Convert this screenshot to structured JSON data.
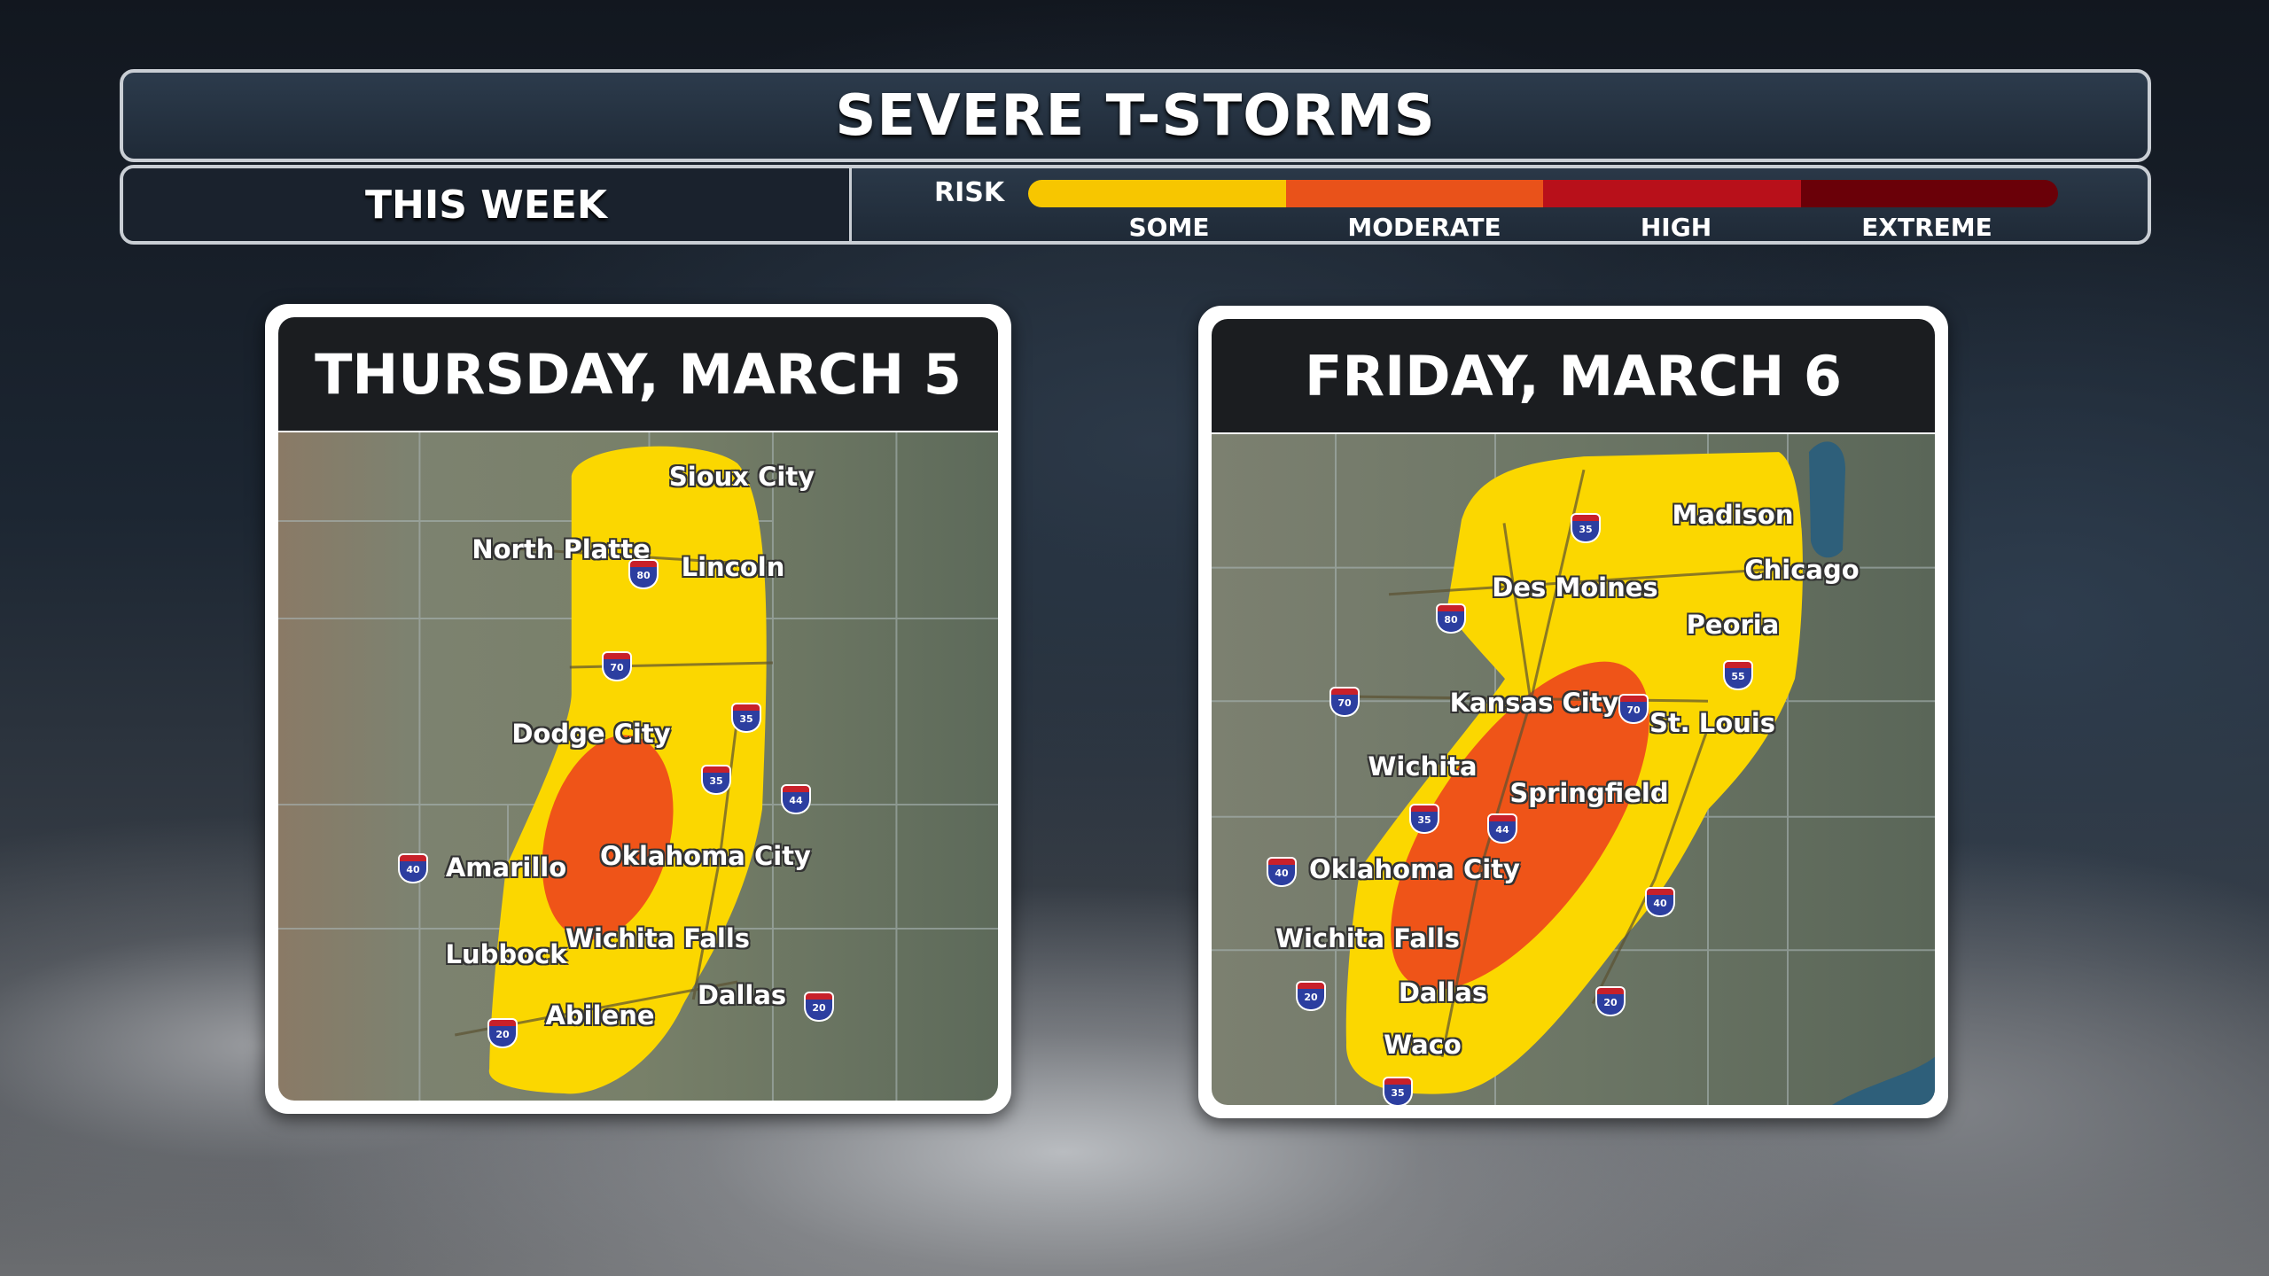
{
  "header": {
    "title": "SEVERE T-STORMS",
    "period": "THIS WEEK",
    "risk_label": "RISK",
    "risk_levels": [
      {
        "label": "SOME",
        "color": "#f7c600"
      },
      {
        "label": "MODERATE",
        "color": "#e9521a"
      },
      {
        "label": "HIGH",
        "color": "#b8101a"
      },
      {
        "label": "EXTREME",
        "color": "#6a0008"
      }
    ]
  },
  "panels": [
    {
      "title": "THURSDAY, MARCH 5",
      "cities": [
        "Sioux City",
        "North Platte",
        "Lincoln",
        "Dodge City",
        "Amarillo",
        "Oklahoma City",
        "Lubbock",
        "Wichita Falls",
        "Abilene",
        "Dallas"
      ],
      "interstates": [
        "80",
        "70",
        "35",
        "35",
        "44",
        "40",
        "20",
        "20"
      ],
      "risk_areas": [
        "SOME",
        "MODERATE"
      ]
    },
    {
      "title": "FRIDAY, MARCH 6",
      "cities": [
        "Madison",
        "Chicago",
        "Des Moines",
        "Peoria",
        "Kansas City",
        "St. Louis",
        "Wichita",
        "Springfield",
        "Oklahoma City",
        "Wichita Falls",
        "Dallas",
        "Waco"
      ],
      "interstates": [
        "35",
        "80",
        "70",
        "70",
        "55",
        "35",
        "44",
        "40",
        "40",
        "20",
        "20",
        "35"
      ],
      "risk_areas": [
        "SOME",
        "MODERATE"
      ]
    }
  ]
}
